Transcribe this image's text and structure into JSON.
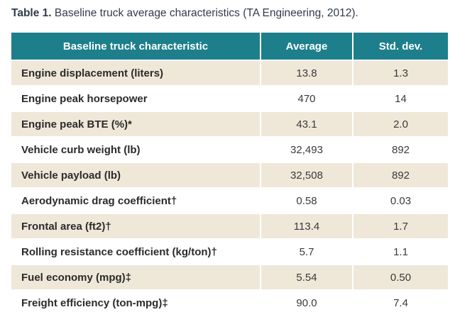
{
  "caption": {
    "label": "Table 1.",
    "text": " Baseline truck average characteristics (TA Engineering, 2012)."
  },
  "table": {
    "headers": [
      "Baseline truck characteristic",
      "Average",
      "Std. dev."
    ],
    "rows": [
      {
        "characteristic": "Engine displacement (liters)",
        "average": "13.8",
        "std_dev": "1.3"
      },
      {
        "characteristic": "Engine peak horsepower",
        "average": "470",
        "std_dev": "14"
      },
      {
        "characteristic": "Engine peak BTE (%)*",
        "average": "43.1",
        "std_dev": "2.0"
      },
      {
        "characteristic": "Vehicle curb weight (lb)",
        "average": "32,493",
        "std_dev": "892"
      },
      {
        "characteristic": "Vehicle payload (lb)",
        "average": "32,508",
        "std_dev": "892"
      },
      {
        "characteristic": "Aerodynamic drag coefficient†",
        "average": "0.58",
        "std_dev": "0.03"
      },
      {
        "characteristic": "Frontal area (ft2)†",
        "average": "113.4",
        "std_dev": "1.7"
      },
      {
        "characteristic": "Rolling resistance coefficient (kg/ton)†",
        "average": "5.7",
        "std_dev": "1.1"
      },
      {
        "characteristic": "Fuel economy (mpg)‡",
        "average": "5.54",
        "std_dev": "0.50"
      },
      {
        "characteristic": "Freight efficiency (ton-mpg)‡",
        "average": "90.0",
        "std_dev": "7.4"
      }
    ]
  },
  "colors": {
    "header_bg": "#1d7f8c",
    "shaded_row_bg": "#efe8d9"
  }
}
